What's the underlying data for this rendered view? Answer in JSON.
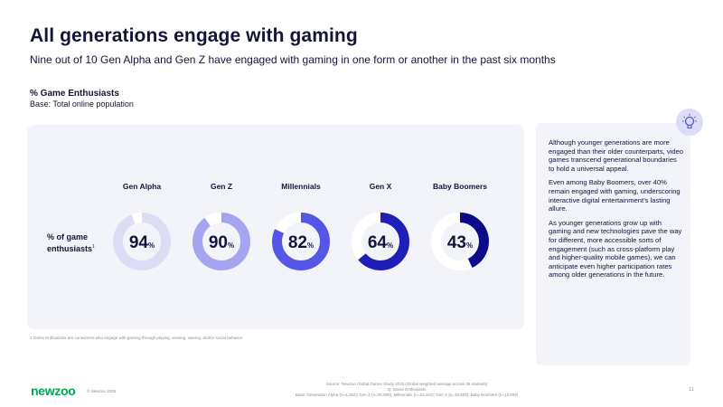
{
  "header": {
    "title": "All generations engage with gaming",
    "subtitle": "Nine out of 10 Gen Alpha and Gen Z have engaged with gaming in one form or another in the past six months"
  },
  "section": {
    "title": "% Game Enthusiasts",
    "base": "Base: Total online population"
  },
  "row_label": {
    "line1": "% of game",
    "line2": "enthusiasts",
    "sup": "1"
  },
  "chart_data": {
    "type": "pie",
    "variant": "donut",
    "categories": [
      "Gen Alpha",
      "Gen Z",
      "Millennials",
      "Gen X",
      "Baby Boomers"
    ],
    "values": [
      94,
      90,
      82,
      64,
      43
    ],
    "value_suffix": "%",
    "max": 100,
    "colors": [
      "#dcdcf5",
      "#a4a4f0",
      "#5656e6",
      "#1f1fb8",
      "#0b0b8a"
    ],
    "track_color": "#ffffff"
  },
  "footnote": "1 Game Enthusiasts are consumers who engage with gaming through playing, viewing, owning, and/or social behavior",
  "insight": {
    "icon": "lightbulb-icon",
    "paragraphs": [
      "Although younger generations are more engaged than their older counterparts, video games transcend generational boundaries to hold a universal appeal.",
      "Even among Baby Boomers, over 40% remain engaged with gaming, underscoring interactive digital entertainment’s lasting allure.",
      "As younger generations grow up with gaming and new technologies pave the way for different, more accessible sorts of engagement (such as cross-platform play and higher-quality mobile games), we can anticipate even higher participation rates among older generations in the future."
    ]
  },
  "footer": {
    "logo": "newzoo",
    "copyright": "© Newzoo 2025",
    "source_line1": "Source: Newzoo Global Gamer Study 2025 (Global weighted average across 36 markets)",
    "source_line2": "Q: Game Enthusiasts",
    "source_line3": "Base: Generation Alpha (n=4,162); Gen Z (n=25,060); Millennials (n=22,162); Gen X (n=15,883); Baby Boomers (n=14,609)",
    "page_number": "11"
  },
  "colors": {
    "brand_green": "#00a651",
    "text_dark": "#14143a",
    "panel_bg": "#f3f3fa"
  }
}
